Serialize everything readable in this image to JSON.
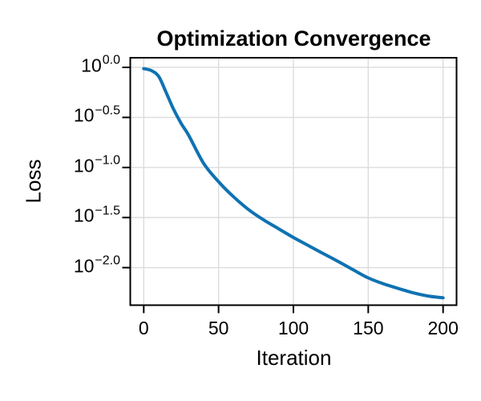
{
  "chart_data": {
    "type": "line",
    "title": "Optimization Convergence",
    "xlabel": "Iteration",
    "ylabel": "Loss",
    "x_scale": "linear",
    "y_scale": "log",
    "grid": true,
    "legend": "none",
    "x_ticks": [
      {
        "label": "0",
        "value": 0
      },
      {
        "label": "50",
        "value": 50
      },
      {
        "label": "100",
        "value": 100
      },
      {
        "label": "150",
        "value": 150
      },
      {
        "label": "200",
        "value": 200
      }
    ],
    "y_ticks": [
      {
        "base": "10",
        "exp": "0.0",
        "log10": 0.0
      },
      {
        "base": "10",
        "exp": "−0.5",
        "log10": -0.5
      },
      {
        "base": "10",
        "exp": "−1.0",
        "log10": -1.0
      },
      {
        "base": "10",
        "exp": "−1.5",
        "log10": -1.5
      },
      {
        "base": "10",
        "exp": "−2.0",
        "log10": -2.0
      }
    ],
    "xlim": [
      -9,
      209
    ],
    "ylim_log10": [
      0.096,
      -2.375
    ],
    "colors": {
      "line": "#0f72b2",
      "grid": "#dcdcdc",
      "spine": "#000000",
      "text": "#000000",
      "background": "#ffffff"
    },
    "series": [
      {
        "name": "loss",
        "line_width": 4,
        "x": [
          0,
          5,
          10,
          15,
          20,
          25,
          30,
          40,
          50,
          60,
          70,
          80,
          90,
          100,
          110,
          120,
          130,
          140,
          150,
          160,
          170,
          180,
          190,
          200
        ],
        "y": [
          0.97,
          0.93,
          0.81,
          0.56,
          0.38,
          0.275,
          0.21,
          0.11,
          0.072,
          0.051,
          0.038,
          0.03,
          0.0245,
          0.02,
          0.0166,
          0.0138,
          0.0115,
          0.0095,
          0.0079,
          0.0069,
          0.0062,
          0.0056,
          0.0052,
          0.005
        ]
      }
    ]
  }
}
